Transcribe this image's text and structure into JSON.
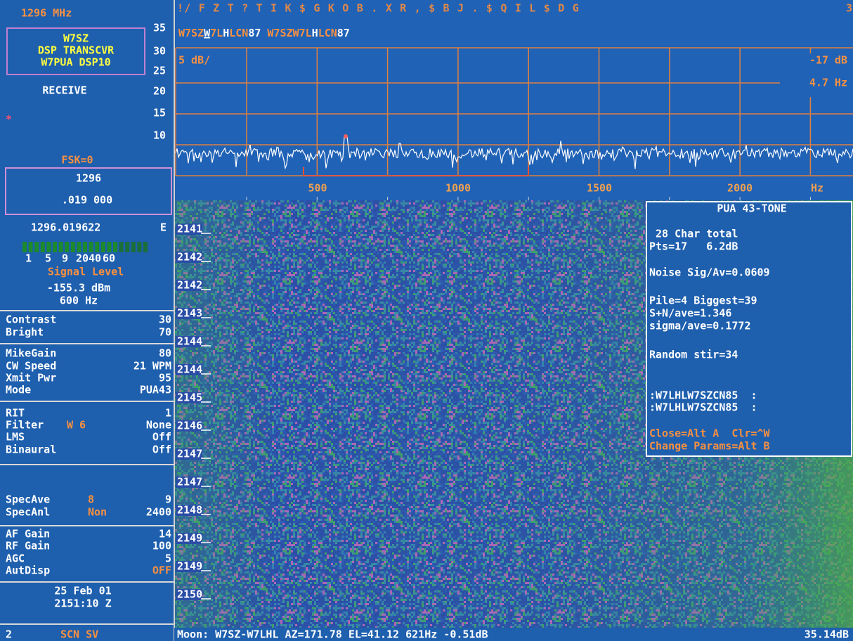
{
  "left_panel": {
    "band": "1296 MHz",
    "station_box": [
      "W7SZ",
      "DSP TRANSCVR",
      "W7PUA DSP10"
    ],
    "status": "RECEIVE",
    "marker": "*",
    "fsk": "FSK=0",
    "freq_mhz": "1296",
    "freq_khz": ".019 000",
    "readout": "1296.019622",
    "readout_flag": "E",
    "meter_scale": [
      "1",
      "5",
      "9",
      "20",
      "40",
      "60"
    ],
    "signal_label": "Signal Level",
    "signal_dbm": "-155.3 dBm",
    "signal_hz": "600 Hz",
    "settings": [
      [
        {
          "label": "Contrast",
          "value": "30"
        },
        {
          "label": "Bright",
          "value": "70"
        }
      ],
      [
        {
          "label": "MikeGain",
          "value": "80"
        },
        {
          "label": "CW Speed",
          "value": "21 WPM"
        },
        {
          "label": "Xmit Pwr",
          "value": "95"
        },
        {
          "label": "Mode",
          "value": "PUA43"
        }
      ],
      [
        {
          "label": "RIT",
          "value": "1"
        },
        {
          "label": "Filter",
          "extra": "W 6",
          "value": "None"
        },
        {
          "label": "LMS",
          "value": "Off"
        },
        {
          "label": "Binaural",
          "value": "Off"
        }
      ],
      [
        {
          "label": "SpecAve",
          "extra": "8",
          "value": "9"
        },
        {
          "label": "SpecAnl",
          "extra": "Non",
          "value": "2400"
        }
      ],
      [
        {
          "label": "AF Gain",
          "value": "14"
        },
        {
          "label": "RF Gain",
          "value": "100"
        },
        {
          "label": "AGC",
          "value": "5"
        },
        {
          "label": "AutDisp",
          "value": "OFF",
          "value_color": "#f89040"
        }
      ]
    ],
    "date": "25 Feb 01",
    "time": "2151:10 Z"
  },
  "spectrum": {
    "decoded_small": "!/ F Z T ? T I K $ G K O B . X R , $ B J . $ Q I L $ D G",
    "decoded_small_right": "3",
    "decoded_big": [
      {
        "text": "W7SZ",
        "color": "#f89040"
      },
      {
        "text": "W",
        "color": "#ffffff",
        "underline": true
      },
      {
        "text": "7L",
        "color": "#f89040"
      },
      {
        "text": "H",
        "color": "#ffffff"
      },
      {
        "text": "LCN",
        "color": "#f89040"
      },
      {
        "text": "87",
        "color": "#ffffff"
      },
      {
        "text": " W7SZW7L",
        "color": "#f89040"
      },
      {
        "text": "H",
        "color": "#ffffff"
      },
      {
        "text": "LCN",
        "color": "#f89040"
      },
      {
        "text": "87",
        "color": "#ffffff"
      }
    ],
    "y_labels": [
      "35",
      "30",
      "25",
      "20",
      "15",
      "10"
    ],
    "scale": "5 dB/",
    "level": "-17 dB",
    "bandwidth": "4.7 Hz",
    "x_labels": [
      "500",
      "1000",
      "1500",
      "2000"
    ],
    "x_unit": "Hz"
  },
  "waterfall": {
    "time_labels": [
      "2141",
      "2142",
      "2142",
      "2143",
      "2144",
      "2144",
      "2145",
      "2146",
      "2147",
      "2147",
      "2148",
      "2149",
      "2149",
      "2150"
    ]
  },
  "popup": {
    "title": "PUA 43-TONE",
    "blocks": [
      {
        "lines": [
          " 28 Char total",
          "Pts=17   6.2dB"
        ],
        "color": "#ffffff"
      },
      {
        "lines": [
          "Noise Sig/Av=0.0609"
        ],
        "color": "#ffffff"
      },
      {
        "lines": [
          "Pile=4 Biggest=39",
          "S+N/ave=1.346",
          "sigma/ave=0.1772"
        ],
        "color": "#ffffff"
      },
      {
        "lines": [
          "Random stir=34"
        ],
        "color": "#ffffff"
      },
      {
        "lines": [
          ":W7LHLW7SZCN85  :",
          ":W7LHLW7SZCN85  :"
        ],
        "color": "#ffffff"
      },
      {
        "lines": [
          "Close=Alt A  Clr=^W",
          "Change Params=Alt B"
        ],
        "color": "#f89040"
      }
    ]
  },
  "status_bar": {
    "left_number": "2",
    "left_mode": "SCN SV",
    "moon": "Moon: W7SZ-W7LHL AZ=171.78 EL=41.12 621Hz -0.51dB",
    "right": "35.14dB"
  }
}
